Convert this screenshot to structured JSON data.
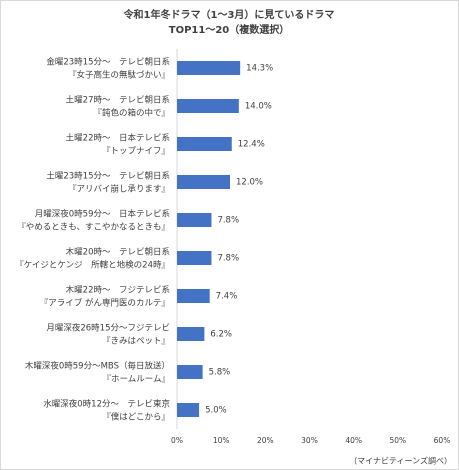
{
  "chart_data": {
    "type": "bar",
    "orientation": "horizontal",
    "title": "令和1年冬ドラマ（1～3月）に見ているドラマ",
    "subtitle": "TOP11～20（複数選択）",
    "categories": [
      [
        "金曜23時15分～　テレビ朝日系",
        "『女子高生の無駄づかい』"
      ],
      [
        "土曜27時～　テレビ朝日系",
        "『鈍色の箱の中で』"
      ],
      [
        "土曜22時～　日本テレビ系",
        "『トップナイフ』"
      ],
      [
        "土曜23時15分～　テレビ朝日系",
        "『アリバイ崩し承ります』"
      ],
      [
        "月曜深夜0時59分～　日本テレビ系",
        "『やめるときも、すこやかなるときも』"
      ],
      [
        "木曜20時～　テレビ朝日系",
        "『ケイジとケンジ　所轄と地検の24時』"
      ],
      [
        "木曜22時～　フジテレビ系",
        "『アライブ がん専門医のカルテ』"
      ],
      [
        "月曜深夜26時15分～フジテレビ",
        "『きみはペット』"
      ],
      [
        "木曜深夜0時59分～MBS（毎日放送）",
        "『ホームルーム』"
      ],
      [
        "水曜深夜0時12分～　テレビ東京",
        "『僕はどこから』"
      ]
    ],
    "values": [
      14.3,
      14.0,
      12.4,
      12.0,
      7.8,
      7.8,
      7.4,
      6.2,
      5.8,
      5.0
    ],
    "value_labels": [
      "14.3%",
      "14.0%",
      "12.4%",
      "12.0%",
      "7.8%",
      "7.8%",
      "7.4%",
      "6.2%",
      "5.8%",
      "5.0%"
    ],
    "color": "#4472c4",
    "xlim": [
      0,
      60
    ],
    "xticks": [
      {
        "value": 0,
        "label": "0%"
      },
      {
        "value": 10,
        "label": "10%"
      },
      {
        "value": 20,
        "label": "20%"
      },
      {
        "value": 30,
        "label": "30%"
      },
      {
        "value": 40,
        "label": "40%"
      },
      {
        "value": 50,
        "label": "50%"
      },
      {
        "value": 60,
        "label": "60%"
      }
    ],
    "grid": false,
    "source": "（マイナビティーンズ調べ）"
  }
}
